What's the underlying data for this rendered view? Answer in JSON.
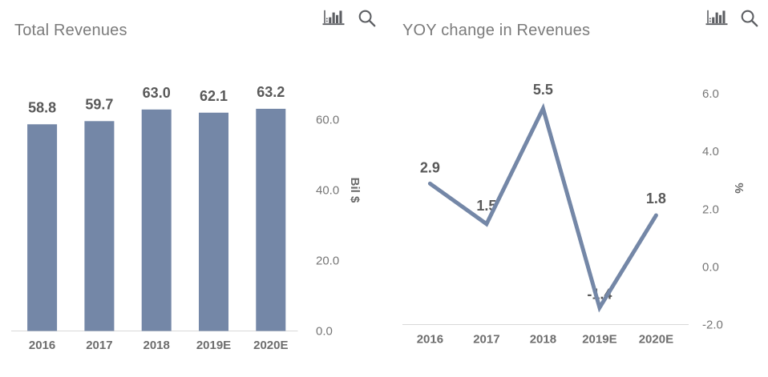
{
  "page": {
    "background_color": "#ffffff",
    "accent_color": "#7487a7",
    "title_color": "#7b7b7b",
    "label_color": "#595959",
    "axis_line_color": "#d8d8d8"
  },
  "toolbar": {
    "column_chart_icon": "column-chart-icon",
    "search_icon": "search-icon"
  },
  "chart_data": [
    {
      "type": "bar",
      "title": "Total Revenues",
      "categories": [
        "2016",
        "2017",
        "2018",
        "2019E",
        "2020E"
      ],
      "values": [
        58.8,
        59.7,
        63.0,
        62.1,
        63.2
      ],
      "value_labels": [
        "58.8",
        "59.7",
        "63.0",
        "62.1",
        "63.2"
      ],
      "xlabel": "",
      "ylabel": "Bil $",
      "yticks": [
        0.0,
        20.0,
        40.0,
        60.0
      ],
      "ytick_labels": [
        "0.0",
        "20.0",
        "40.0",
        "60.0"
      ],
      "ylim": [
        0,
        66
      ],
      "grid": "off",
      "legend": "none",
      "axis_side": "right",
      "bar_color": "#7487a7"
    },
    {
      "type": "line",
      "title": "YOY change in Revenues",
      "categories": [
        "2016",
        "2017",
        "2018",
        "2019E",
        "2020E"
      ],
      "values": [
        2.9,
        1.5,
        5.5,
        -1.4,
        1.8
      ],
      "value_labels": [
        "2.9",
        "1.5",
        "5.5",
        "-1.4",
        "1.8"
      ],
      "xlabel": "",
      "ylabel": "%",
      "yticks": [
        -2.0,
        0.0,
        2.0,
        4.0,
        6.0
      ],
      "ytick_labels": [
        "-2.0",
        "0.0",
        "2.0",
        "4.0",
        "6.0"
      ],
      "ylim": [
        -2,
        6
      ],
      "grid": "off",
      "legend": "none",
      "axis_side": "right",
      "line_color": "#7487a7"
    }
  ]
}
